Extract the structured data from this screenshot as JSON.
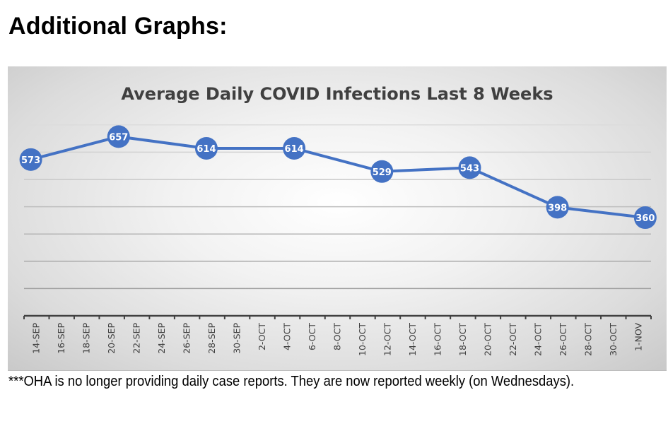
{
  "page": {
    "heading": "Additional Graphs:",
    "footnote": "***OHA is no longer providing daily case reports.  They are now reported weekly (on Wednesdays)."
  },
  "chart_data": {
    "type": "line",
    "title": "Average Daily COVID Infections Last 8 Weeks",
    "xlabel": "",
    "ylabel": "",
    "categories": [
      "14-SEP",
      "16-SEP",
      "18-SEP",
      "20-SEP",
      "22-SEP",
      "24-SEP",
      "26-SEP",
      "28-SEP",
      "30-SEP",
      "2-OCT",
      "4-OCT",
      "6-OCT",
      "8-OCT",
      "10-OCT",
      "12-OCT",
      "14-OCT",
      "16-OCT",
      "18-OCT",
      "20-OCT",
      "22-OCT",
      "24-OCT",
      "26-OCT",
      "28-OCT",
      "30-OCT",
      "1-NOV"
    ],
    "x_range_days": [
      "14-SEP",
      "3-NOV"
    ],
    "ylim": [
      0,
      700
    ],
    "y_gridline_step": 100,
    "y_tick_labels_visible": false,
    "grid": true,
    "legend": "none",
    "series": [
      {
        "name": "Average Daily COVID Infections",
        "color": "#4472C4",
        "points": [
          {
            "date": "14-SEP",
            "day_offset": 0,
            "value": 573
          },
          {
            "date": "21-SEP",
            "day_offset": 7,
            "value": 657
          },
          {
            "date": "28-SEP",
            "day_offset": 14,
            "value": 614
          },
          {
            "date": "5-OCT",
            "day_offset": 21,
            "value": 614
          },
          {
            "date": "12-OCT",
            "day_offset": 28,
            "value": 529
          },
          {
            "date": "19-OCT",
            "day_offset": 35,
            "value": 543
          },
          {
            "date": "26-OCT",
            "day_offset": 42,
            "value": 398
          },
          {
            "date": "2-NOV",
            "day_offset": 49,
            "value": 360
          }
        ]
      }
    ],
    "data_labels": true,
    "style": {
      "line_color": "#4472C4",
      "title_color": "#404040",
      "label_color": "#ffffff",
      "axis_color": "#404040"
    }
  }
}
